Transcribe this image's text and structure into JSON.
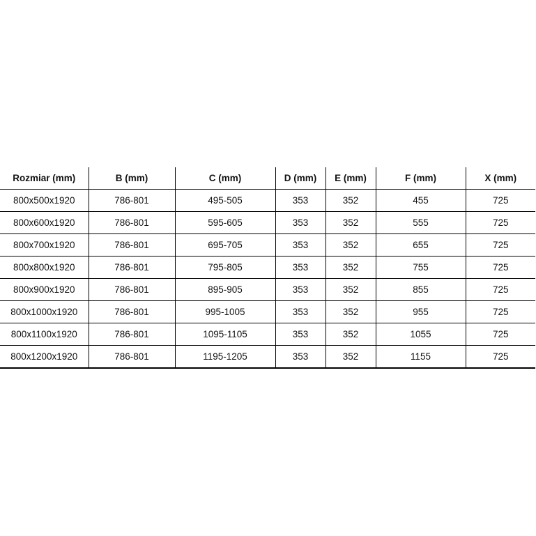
{
  "table": {
    "headers": [
      "Rozmiar (mm)",
      "B (mm)",
      "C (mm)",
      "D (mm)",
      "E (mm)",
      "F (mm)",
      "X (mm)"
    ],
    "rows": [
      [
        "800x500x1920",
        "786-801",
        "495-505",
        "353",
        "352",
        "455",
        "725"
      ],
      [
        "800x600x1920",
        "786-801",
        "595-605",
        "353",
        "352",
        "555",
        "725"
      ],
      [
        "800x700x1920",
        "786-801",
        "695-705",
        "353",
        "352",
        "655",
        "725"
      ],
      [
        "800x800x1920",
        "786-801",
        "795-805",
        "353",
        "352",
        "755",
        "725"
      ],
      [
        "800x900x1920",
        "786-801",
        "895-905",
        "353",
        "352",
        "855",
        "725"
      ],
      [
        "800x1000x1920",
        "786-801",
        "995-1005",
        "353",
        "352",
        "955",
        "725"
      ],
      [
        "800x1100x1920",
        "786-801",
        "1095-1105",
        "353",
        "352",
        "1055",
        "725"
      ],
      [
        "800x1200x1920",
        "786-801",
        "1195-1205",
        "353",
        "352",
        "1155",
        "725"
      ]
    ]
  }
}
